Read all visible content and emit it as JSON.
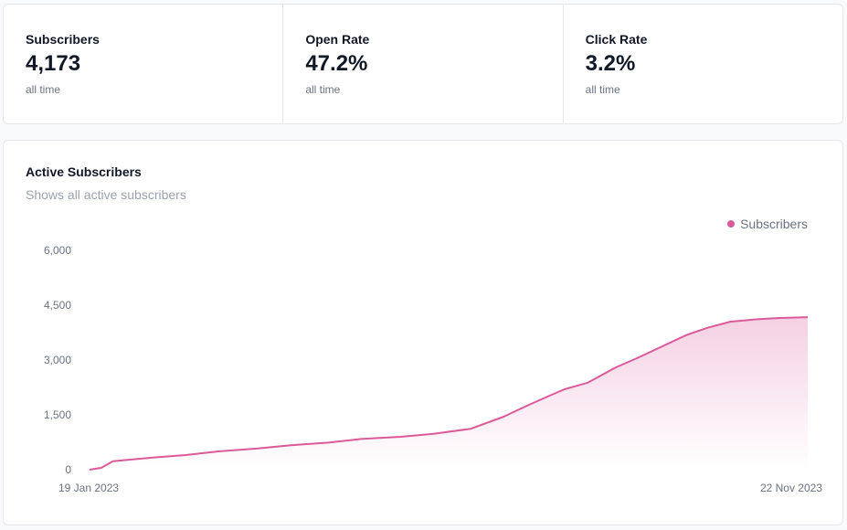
{
  "stats": [
    {
      "label": "Subscribers",
      "value": "4,173",
      "note": "all time"
    },
    {
      "label": "Open Rate",
      "value": "47.2%",
      "note": "all time"
    },
    {
      "label": "Click Rate",
      "value": "3.2%",
      "note": "all time"
    }
  ],
  "chart_card": {
    "title": "Active Subscribers",
    "subtitle": "Shows all active subscribers"
  },
  "chart_data": {
    "type": "area",
    "title": "Active Subscribers",
    "subtitle": "Shows all active subscribers",
    "color": "#db5a9a",
    "ylim": [
      0,
      6000
    ],
    "y_ticks": [
      "0",
      "1,500",
      "3,000",
      "4,500",
      "6,000"
    ],
    "y_tick_values": [
      0,
      1500,
      3000,
      4500,
      6000
    ],
    "x_tick_labels": [
      "19 Jan 2023",
      "22 Nov 2023"
    ],
    "grid": false,
    "legend": "top-right",
    "series": [
      {
        "name": "Subscribers",
        "x": [
          "2023-01-19",
          "2023-01-24",
          "2023-01-29",
          "2023-02-01",
          "2023-02-15",
          "2023-03-01",
          "2023-03-15",
          "2023-04-01",
          "2023-04-15",
          "2023-05-01",
          "2023-05-15",
          "2023-06-01",
          "2023-06-15",
          "2023-07-01",
          "2023-07-15",
          "2023-07-25",
          "2023-08-01",
          "2023-08-10",
          "2023-08-20",
          "2023-09-01",
          "2023-09-10",
          "2023-09-20",
          "2023-10-01",
          "2023-10-10",
          "2023-10-20",
          "2023-11-01",
          "2023-11-10",
          "2023-11-22"
        ],
        "values": [
          0,
          50,
          230,
          250,
          330,
          400,
          500,
          580,
          670,
          740,
          840,
          900,
          980,
          1120,
          1450,
          1750,
          1950,
          2200,
          2380,
          2800,
          3050,
          3350,
          3680,
          3880,
          4050,
          4120,
          4150,
          4173
        ]
      }
    ]
  }
}
